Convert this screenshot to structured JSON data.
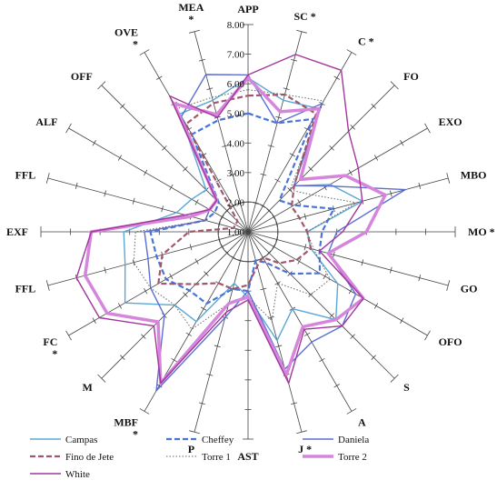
{
  "chart_data": {
    "type": "radar",
    "axes": [
      "APP",
      "SC *",
      "C *",
      "FO",
      "EXO",
      "MBO",
      "MO *",
      "GO",
      "OFO",
      "S",
      "A",
      "J *",
      "AST",
      "P",
      "MBF *",
      "M",
      "FC *",
      "FFL",
      "EXF",
      "FFL",
      "ALF",
      "OFF",
      "OVE *",
      "MEA *"
    ],
    "rlim": [
      1,
      8
    ],
    "ticks": [
      "1.00",
      "2.00",
      "3.00",
      "4.00",
      "5.00",
      "6.00",
      "7.00",
      "8.00"
    ],
    "series": [
      {
        "name": "Campas",
        "color": "#5aa7d6",
        "style": "solid",
        "values": [
          6.2,
          5.6,
          5.8,
          3.2,
          4.2,
          5.0,
          3.0,
          3.2,
          4.5,
          5.2,
          4.0,
          4.8,
          3.2,
          2.8,
          4.5,
          4.5,
          5.8,
          5.3,
          5.2,
          3.5,
          3.2,
          3.0,
          5.6,
          5.6
        ]
      },
      {
        "name": "Cheffey",
        "color": "#4a74d8",
        "style": "dashed",
        "values": [
          5.0,
          4.8,
          5.4,
          2.5,
          2.8,
          4.0,
          3.5,
          3.5,
          3.8,
          3.0,
          2.2,
          2.0,
          3.0,
          3.0,
          3.8,
          3.8,
          4.2,
          4.2,
          4.3,
          2.5,
          2.3,
          2.4,
          4.8,
          4.9
        ]
      },
      {
        "name": "Daniela",
        "color": "#5b6fd3",
        "style": "solid",
        "values": [
          6.3,
          4.8,
          6.0,
          3.2,
          4.1,
          6.5,
          4.0,
          3.8,
          5.2,
          5.5,
          5.3,
          5.8,
          3.0,
          4.0,
          7.2,
          5.0,
          4.8,
          4.5,
          4.5,
          2.5,
          2.5,
          2.5,
          5.5,
          6.5
        ]
      },
      {
        "name": "Fino de Jete",
        "color": "#a0576b",
        "style": "dashed",
        "values": [
          5.6,
          5.8,
          5.6,
          3.2,
          2.7,
          2.8,
          3.0,
          3.2,
          2.9,
          2.5,
          2.0,
          2.2,
          2.8,
          3.0,
          3.0,
          3.5,
          4.5,
          4.0,
          3.0,
          1.5,
          1.5,
          1.5,
          5.2,
          5.5
        ]
      },
      {
        "name": "Torre 1",
        "color": "#666666",
        "style": "dotted",
        "values": [
          5.8,
          5.8,
          6.1,
          3.0,
          3.5,
          4.8,
          3.0,
          3.3,
          4.2,
          4.0,
          3.0,
          4.1,
          3.2,
          3.5,
          4.8,
          4.5,
          4.8,
          5.0,
          4.8,
          2.5,
          2.5,
          2.5,
          5.8,
          5.7
        ]
      },
      {
        "name": "Torre 2",
        "color": "#d685dd",
        "style": "thick",
        "values": [
          6.2,
          5.2,
          5.8,
          3.5,
          4.8,
          5.8,
          5.0,
          3.8,
          5.5,
          5.2,
          4.7,
          6.0,
          3.2,
          3.5,
          6.9,
          5.3,
          6.5,
          6.7,
          6.3,
          3.0,
          2.5,
          2.5,
          6.0,
          5.1
        ]
      },
      {
        "name": "White",
        "color": "#a2369c",
        "style": "solid",
        "values": [
          6.3,
          7.2,
          7.3,
          5.8,
          5.3,
          5.0,
          4.2,
          3.5,
          5.5,
          5.5,
          4.8,
          6.3,
          3.3,
          3.8,
          6.9,
          5.5,
          6.8,
          7.0,
          6.3,
          3.2,
          2.5,
          2.5,
          6.3,
          5.0
        ]
      }
    ],
    "legend_position": "bottom"
  }
}
